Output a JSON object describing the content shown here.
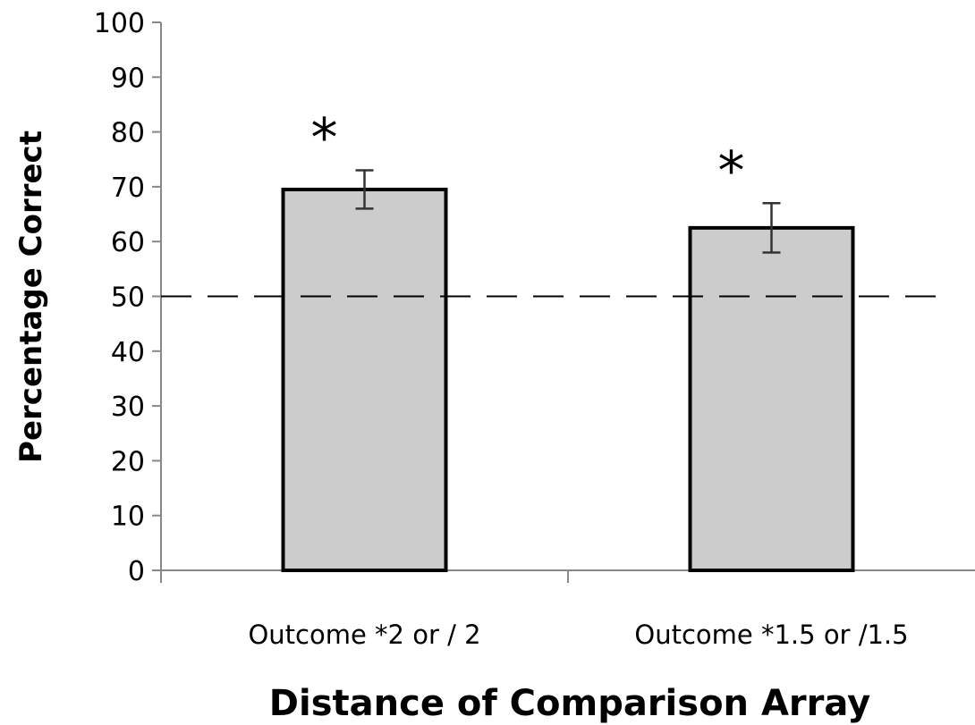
{
  "chart_data": {
    "type": "bar",
    "categories": [
      "Outcome *2 or / 2",
      "Outcome *1.5 or /1.5"
    ],
    "values": [
      69.5,
      62.5
    ],
    "error_bars": [
      {
        "low": 66,
        "high": 73
      },
      {
        "low": 58,
        "high": 67
      }
    ],
    "annotations": [
      "*",
      "*"
    ],
    "reference_line": {
      "value": 50,
      "style": "dashed"
    },
    "ylabel": "Percentage Correct",
    "xlabel": "Distance of Comparison Array",
    "ylim": [
      0,
      100
    ],
    "yticks": [
      "0",
      "10",
      "20",
      "30",
      "40",
      "50",
      "60",
      "70",
      "80",
      "90",
      "100"
    ],
    "grid": false,
    "bar_color": "#cccccc",
    "bar_edge_color": "#000000"
  }
}
